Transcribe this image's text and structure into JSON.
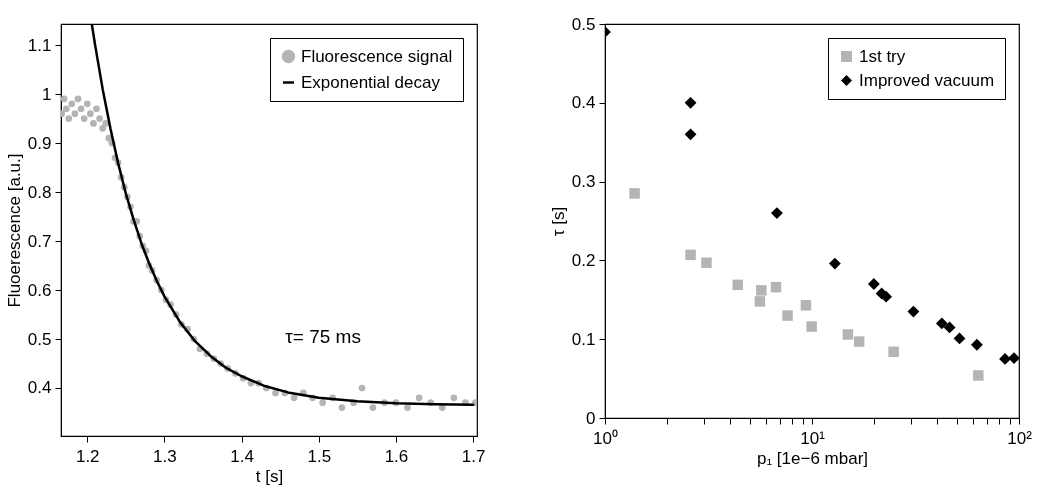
{
  "chart_data": [
    {
      "type": "scatter",
      "xlabel": "t [s]",
      "ylabel": "Fluoerescence [a.u.]",
      "xlim": [
        1.166,
        1.705
      ],
      "ylim": [
        0.302,
        1.143
      ],
      "xticks": [
        1.2,
        1.3,
        1.4,
        1.5,
        1.6,
        1.7
      ],
      "yticks": [
        0.4,
        0.5,
        0.6,
        0.7,
        0.8,
        0.9,
        1,
        1.1
      ],
      "grid": false,
      "legend": "top right",
      "annotations": [
        "τ= 75 ms"
      ],
      "series": [
        {
          "name": "Fluorescence signal",
          "color": "#b4b4b4",
          "marker": "circle",
          "x": [
            1.167,
            1.17,
            1.173,
            1.176,
            1.18,
            1.184,
            1.188,
            1.192,
            1.196,
            1.2,
            1.204,
            1.208,
            1.212,
            1.216,
            1.22,
            1.224,
            1.228,
            1.232,
            1.236,
            1.24,
            1.244,
            1.248,
            1.252,
            1.256,
            1.26,
            1.264,
            1.268,
            1.272,
            1.276,
            1.28,
            1.284,
            1.29,
            1.296,
            1.302,
            1.308,
            1.315,
            1.322,
            1.33,
            1.338,
            1.346,
            1.355,
            1.364,
            1.373,
            1.382,
            1.392,
            1.402,
            1.412,
            1.422,
            1.432,
            1.444,
            1.456,
            1.468,
            1.48,
            1.492,
            1.505,
            1.518,
            1.53,
            1.545,
            1.556,
            1.57,
            1.585,
            1.6,
            1.615,
            1.63,
            1.645,
            1.66,
            1.675,
            1.69,
            1.703
          ],
          "values": [
            0.96,
            0.99,
            0.97,
            0.95,
            0.98,
            0.96,
            0.99,
            0.97,
            0.95,
            0.98,
            0.96,
            0.94,
            0.97,
            0.95,
            0.93,
            0.94,
            0.91,
            0.9,
            0.87,
            0.86,
            0.83,
            0.81,
            0.79,
            0.77,
            0.74,
            0.74,
            0.71,
            0.69,
            0.68,
            0.65,
            0.64,
            0.62,
            0.6,
            0.58,
            0.57,
            0.55,
            0.53,
            0.52,
            0.5,
            0.48,
            0.47,
            0.46,
            0.45,
            0.44,
            0.43,
            0.42,
            0.41,
            0.41,
            0.4,
            0.39,
            0.39,
            0.38,
            0.39,
            0.38,
            0.37,
            0.38,
            0.36,
            0.37,
            0.4,
            0.36,
            0.37,
            0.37,
            0.36,
            0.38,
            0.37,
            0.36,
            0.38,
            0.37,
            0.37
          ]
        },
        {
          "name": "Exponential decay",
          "type": "line",
          "color": "#000000",
          "x": [
            1.206,
            1.21,
            1.22,
            1.23,
            1.24,
            1.25,
            1.26,
            1.27,
            1.28,
            1.29,
            1.3,
            1.32,
            1.34,
            1.36,
            1.38,
            1.4,
            1.43,
            1.46,
            1.5,
            1.55,
            1.6,
            1.65,
            1.7
          ],
          "values": [
            1.142,
            1.102,
            1.01,
            0.93,
            0.859,
            0.797,
            0.744,
            0.696,
            0.655,
            0.619,
            0.587,
            0.535,
            0.495,
            0.465,
            0.441,
            0.424,
            0.404,
            0.391,
            0.38,
            0.373,
            0.369,
            0.367,
            0.366
          ]
        }
      ]
    },
    {
      "type": "scatter",
      "xlabel": "p₁ [1e−6 mbar]",
      "ylabel": "τ [s]",
      "log": "x",
      "xlim": [
        1,
        100
      ],
      "ylim": [
        0,
        0.5
      ],
      "xticks": [
        {
          "value": 1,
          "label": "10⁰"
        },
        {
          "value": 2,
          "label": null
        },
        {
          "value": 3,
          "label": null
        },
        {
          "value": 4,
          "label": null
        },
        {
          "value": 5,
          "label": null
        },
        {
          "value": 6,
          "label": null
        },
        {
          "value": 7,
          "label": null
        },
        {
          "value": 8,
          "label": null
        },
        {
          "value": 9,
          "label": null
        },
        {
          "value": 10,
          "label": "10¹"
        },
        {
          "value": 20,
          "label": null
        },
        {
          "value": 30,
          "label": null
        },
        {
          "value": 40,
          "label": null
        },
        {
          "value": 50,
          "label": null
        },
        {
          "value": 60,
          "label": null
        },
        {
          "value": 70,
          "label": null
        },
        {
          "value": 80,
          "label": null
        },
        {
          "value": 90,
          "label": null
        },
        {
          "value": 100,
          "label": "10²"
        }
      ],
      "yticks": [
        0,
        0.1,
        0.2,
        0.3,
        0.4,
        0.5
      ],
      "grid": false,
      "legend": "top right",
      "series": [
        {
          "name": "1st try",
          "color": "#b4b4b4",
          "marker": "square",
          "x": [
            1.39,
            2.59,
            3.09,
            4.38,
            5.6,
            5.69,
            6.7,
            7.62,
            9.35,
            9.96,
            14.9,
            16.9,
            24.8,
            63.6
          ],
          "values": [
            0.285,
            0.207,
            0.197,
            0.169,
            0.148,
            0.162,
            0.166,
            0.13,
            0.143,
            0.116,
            0.106,
            0.097,
            0.084,
            0.054
          ]
        },
        {
          "name": "Improved vacuum",
          "color": "#000000",
          "marker": "diamond",
          "x": [
            1.0,
            2.59,
            2.59,
            6.77,
            12.9,
            19.9,
            21.7,
            22.8,
            30.9,
            42.4,
            46.2,
            51.6,
            62.6,
            85.6,
            94.6
          ],
          "values": [
            0.49,
            0.4,
            0.36,
            0.26,
            0.196,
            0.17,
            0.158,
            0.154,
            0.135,
            0.12,
            0.115,
            0.101,
            0.093,
            0.075,
            0.076
          ]
        }
      ]
    }
  ]
}
